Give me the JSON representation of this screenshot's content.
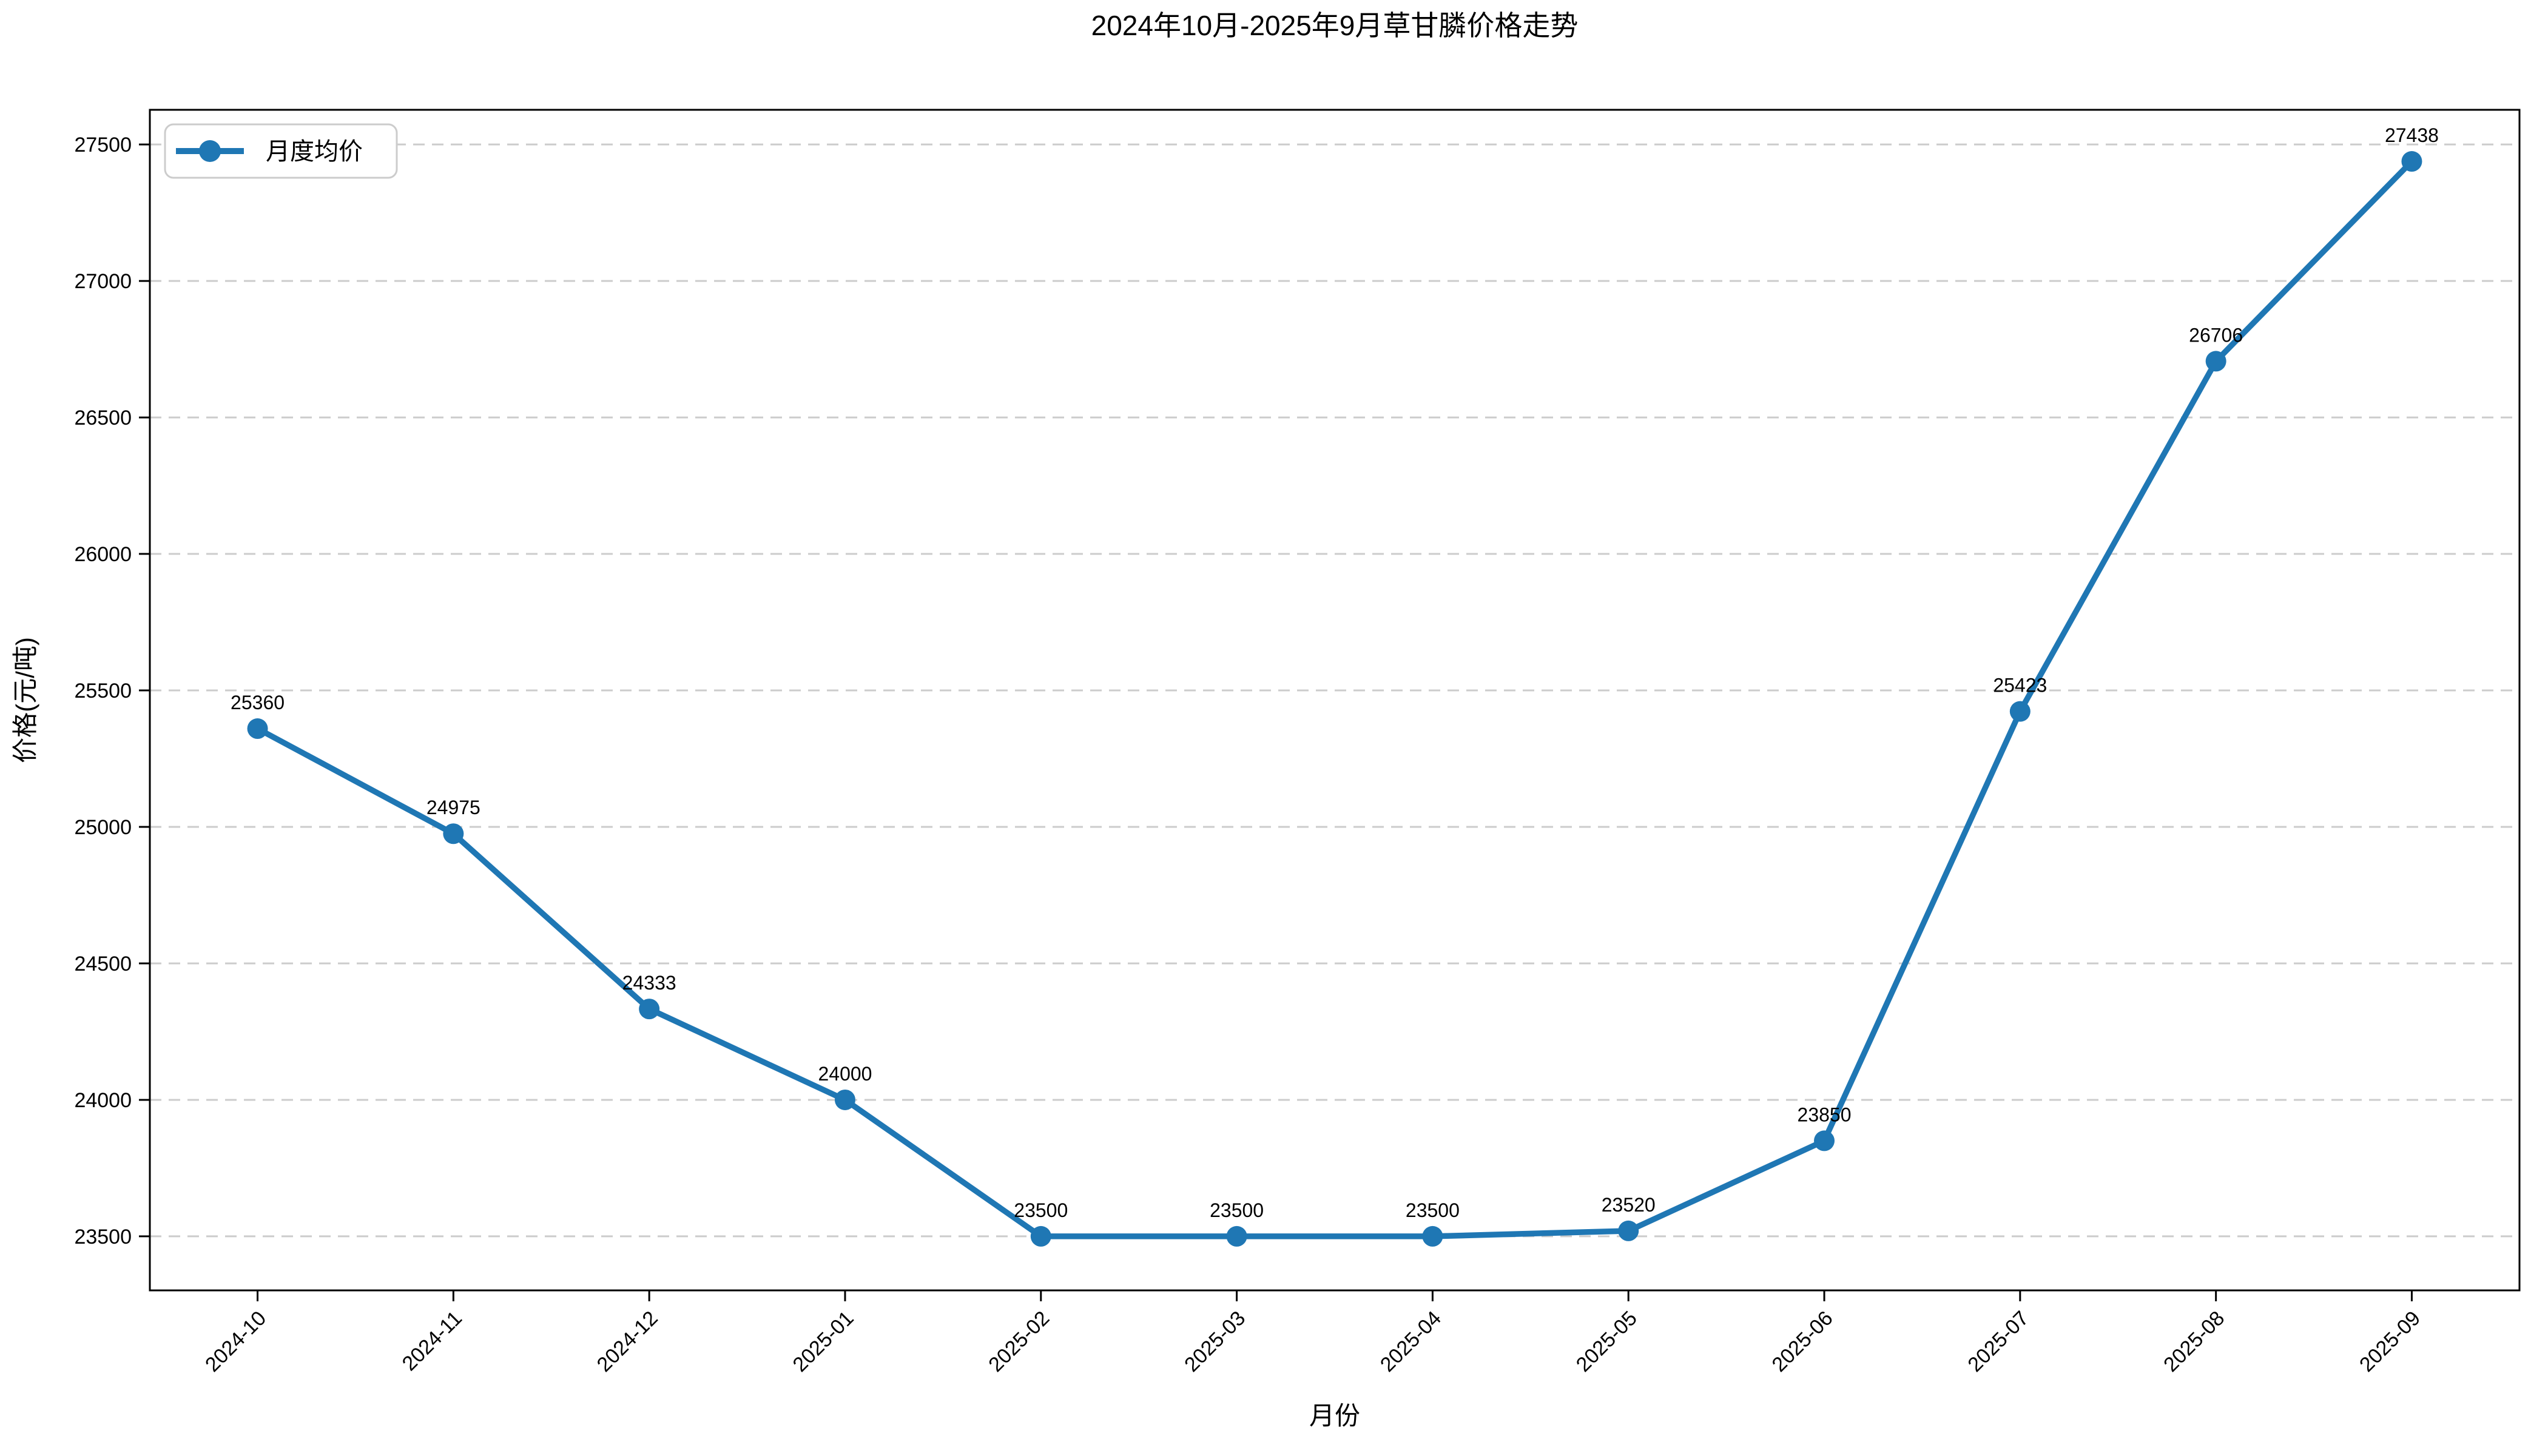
{
  "chart_data": {
    "type": "line",
    "title": "2024年10月-2025年9月草甘膦价格走势",
    "xlabel": "月份",
    "ylabel": "价格(元/吨)",
    "categories": [
      "2024-10",
      "2024-11",
      "2024-12",
      "2025-01",
      "2025-02",
      "2025-03",
      "2025-04",
      "2025-05",
      "2025-06",
      "2025-07",
      "2025-08",
      "2025-09"
    ],
    "series": [
      {
        "name": "月度均价",
        "values": [
          25360,
          24975,
          24333,
          24000,
          23500,
          23500,
          23500,
          23520,
          23850,
          25423,
          26706,
          27438
        ],
        "color": "#1f77b4",
        "marker": "circle",
        "data_labels": [
          25360,
          24975,
          24333,
          24000,
          23500,
          23500,
          23500,
          23520,
          23850,
          25423,
          26706,
          27438
        ]
      }
    ],
    "yticks": [
      23500,
      24000,
      24500,
      25000,
      25500,
      26000,
      26500,
      27000,
      27500
    ],
    "ylim": [
      23302,
      27627
    ],
    "grid": {
      "axis": "y",
      "style": "dashed",
      "on": true
    },
    "legend": {
      "label": "月度均价",
      "position": "upper-left"
    }
  },
  "colors": {
    "line": "#1f77b4",
    "grid": "#cccccc",
    "spine": "#000000",
    "text": "#000000",
    "legend_border": "#cccccc",
    "background": "#ffffff"
  }
}
